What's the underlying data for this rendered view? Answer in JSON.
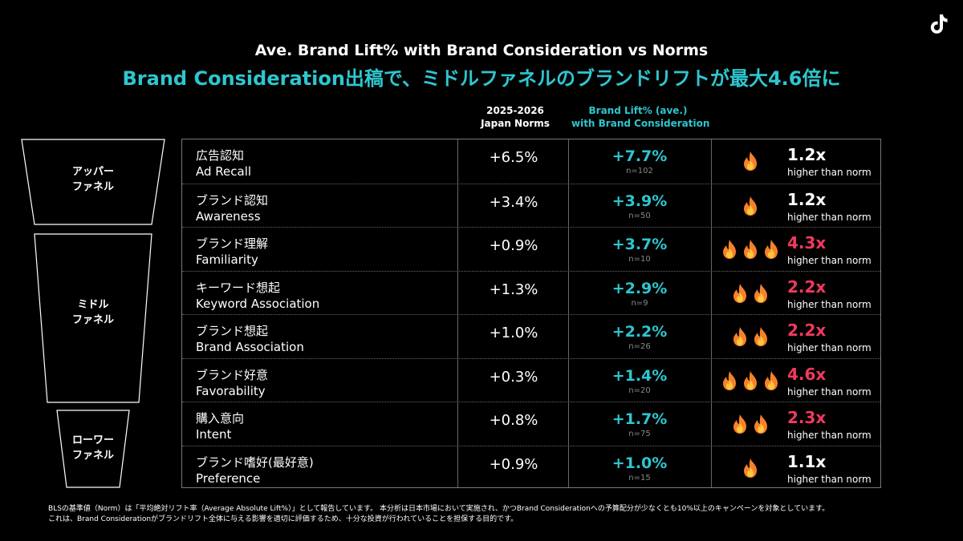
{
  "header": {
    "title": "Ave. Brand Lift% with Brand Consideration vs Norms",
    "subtitle": "Brand Consideration出稿で、ミドルファネルのブランドリフトが最大4.6倍に"
  },
  "columns": {
    "norms_line1": "2025-2026",
    "norms_line2": "Japan Norms",
    "lift_line1": "Brand Lift% (ave.)",
    "lift_line2": "with Brand Consideration"
  },
  "funnel": {
    "upper": [
      "アッパー",
      "ファネル"
    ],
    "middle": [
      "ミドル",
      "ファネル"
    ],
    "lower": [
      "ローワー",
      "ファネル"
    ]
  },
  "rows": [
    {
      "ja": "広告認知",
      "en": "Ad Recall",
      "norm": "+6.5%",
      "lift": "+7.7%",
      "n": "n=102",
      "flames": 1,
      "mult": "1.2x",
      "highlight": false,
      "note": "higher than norm"
    },
    {
      "ja": "ブランド認知",
      "en": "Awareness",
      "norm": "+3.4%",
      "lift": "+3.9%",
      "n": "n=50",
      "flames": 1,
      "mult": "1.2x",
      "highlight": false,
      "note": "higher than norm"
    },
    {
      "ja": "ブランド理解",
      "en": "Familiarity",
      "norm": "+0.9%",
      "lift": "+3.7%",
      "n": "n=10",
      "flames": 3,
      "mult": "4.3x",
      "highlight": true,
      "note": "higher than norm"
    },
    {
      "ja": "キーワード想起",
      "en": "Keyword Association",
      "norm": "+1.3%",
      "lift": "+2.9%",
      "n": "n=9",
      "flames": 2,
      "mult": "2.2x",
      "highlight": true,
      "note": "higher than norm"
    },
    {
      "ja": "ブランド想起",
      "en": "Brand Association",
      "norm": "+1.0%",
      "lift": "+2.2%",
      "n": "n=26",
      "flames": 2,
      "mult": "2.2x",
      "highlight": true,
      "note": "higher than norm"
    },
    {
      "ja": "ブランド好意",
      "en": "Favorability",
      "norm": "+0.3%",
      "lift": "+1.4%",
      "n": "n=20",
      "flames": 3,
      "mult": "4.6x",
      "highlight": true,
      "note": "higher than norm"
    },
    {
      "ja": "購入意向",
      "en": "Intent",
      "norm": "+0.8%",
      "lift": "+1.7%",
      "n": "n=75",
      "flames": 2,
      "mult": "2.3x",
      "highlight": true,
      "note": "higher than norm"
    },
    {
      "ja": "ブランド嗜好(最好意)",
      "en": "Preference",
      "norm": "+0.9%",
      "lift": "+1.0%",
      "n": "n=15",
      "flames": 1,
      "mult": "1.1x",
      "highlight": false,
      "note": "higher than norm"
    }
  ],
  "footnote": {
    "line1": "BLSの基準値（Norm）は「平均絶対リフト率（Average Absolute Lift%）」として報告しています。 本分析は日本市場において実施され、かつBrand Considerationへの予算配分が少なくとも10%以上のキャンペーンを対象としています。",
    "line2": "これは、Brand Considerationがブランドリフト全体に与える影響を適切に評価するため、十分な投資が行われていることを担保する目的です。"
  },
  "colors": {
    "accent": "#2ec6cf",
    "highlight": "#f2395e",
    "flame": "#f5822a"
  },
  "icons": {
    "logo": "tiktok-logo-icon",
    "flame": "fire-icon"
  }
}
